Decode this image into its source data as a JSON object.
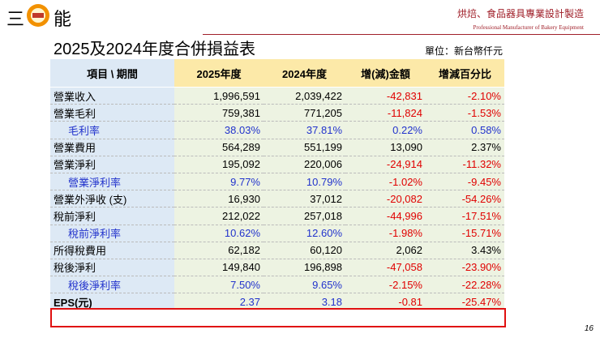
{
  "header": {
    "brand_left": "三",
    "brand_right": "能",
    "tagline": "烘焙、食品器具專業設計製造",
    "tagline_en": "Professional Manufacturer of Bakery Equipment"
  },
  "title": "2025及2024年度合併損益表",
  "unit": "單位：新台幣仟元",
  "table": {
    "columns": [
      "項目 \\ 期間",
      "2025年度",
      "2024年度",
      "增(減)金額",
      "增減百分比"
    ],
    "rows": [
      [
        "營業收入",
        "1,996,591",
        "2,039,422",
        "-42,831",
        "-2.10%"
      ],
      [
        "營業毛利",
        "759,381",
        "771,205",
        "-11,824",
        "-1.53%"
      ],
      [
        "毛利率",
        "38.03%",
        "37.81%",
        "0.22%",
        "0.58%"
      ],
      [
        "營業費用",
        "564,289",
        "551,199",
        "13,090",
        "2.37%"
      ],
      [
        "營業淨利",
        "195,092",
        "220,006",
        "-24,914",
        "-11.32%"
      ],
      [
        "營業淨利率",
        "9.77%",
        "10.79%",
        "-1.02%",
        "-9.45%"
      ],
      [
        "營業外淨收 (支)",
        "16,930",
        "37,012",
        "-20,082",
        "-54.26%"
      ],
      [
        "稅前淨利",
        "212,022",
        "257,018",
        "-44,996",
        "-17.51%"
      ],
      [
        "稅前淨利率",
        "10.62%",
        "12.60%",
        "-1.98%",
        "-15.71%"
      ],
      [
        "所得稅費用",
        "62,182",
        "60,120",
        "2,062",
        "3.43%"
      ],
      [
        "稅後淨利",
        "149,840",
        "196,898",
        "-47,058",
        "-23.90%"
      ],
      [
        "稅後淨利率",
        "7.50%",
        "9.65%",
        "-2.15%",
        "-22.28%"
      ],
      [
        "EPS(元)",
        "2.37",
        "3.18",
        "-0.81",
        "-25.47%"
      ]
    ]
  },
  "page_number": "16"
}
